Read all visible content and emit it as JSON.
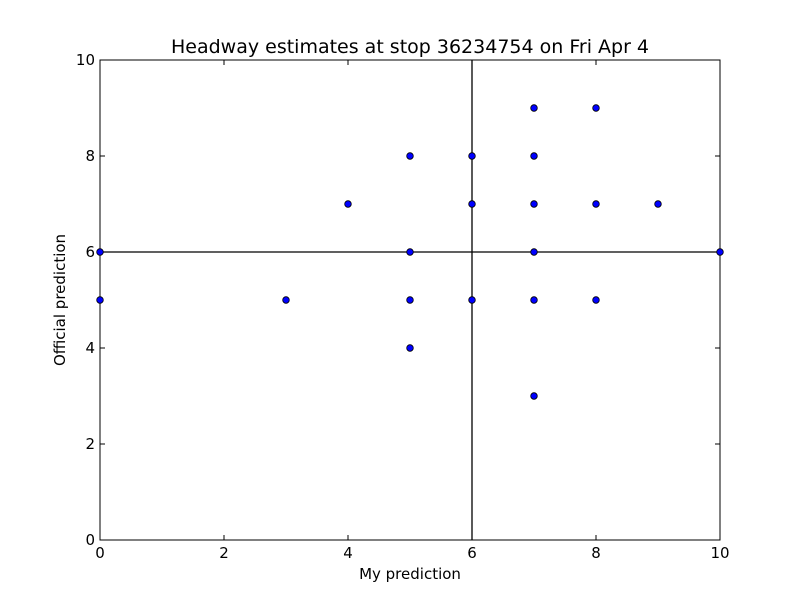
{
  "chart_data": {
    "type": "scatter",
    "title": "Headway estimates at stop 36234754 on Fri Apr 4",
    "xlabel": "My prediction",
    "ylabel": "Official prediction",
    "xlim": [
      0,
      10
    ],
    "ylim": [
      0,
      10
    ],
    "xticks": [
      "0",
      "2",
      "4",
      "6",
      "8",
      "10"
    ],
    "yticks": [
      "0",
      "2",
      "4",
      "6",
      "8",
      "10"
    ],
    "grid": false,
    "reference_lines": {
      "x": 6,
      "y": 6
    },
    "marker_color": "#0000ff",
    "points": [
      [
        0,
        6
      ],
      [
        0,
        5
      ],
      [
        3,
        5
      ],
      [
        4,
        7
      ],
      [
        5,
        8
      ],
      [
        5,
        6
      ],
      [
        5,
        5
      ],
      [
        5,
        4
      ],
      [
        6,
        8
      ],
      [
        6,
        7
      ],
      [
        6,
        5
      ],
      [
        7,
        9
      ],
      [
        7,
        8
      ],
      [
        7,
        7
      ],
      [
        7,
        6
      ],
      [
        7,
        5
      ],
      [
        7,
        3
      ],
      [
        8,
        9
      ],
      [
        8,
        7
      ],
      [
        8,
        5
      ],
      [
        9,
        7
      ],
      [
        10,
        6
      ]
    ]
  }
}
